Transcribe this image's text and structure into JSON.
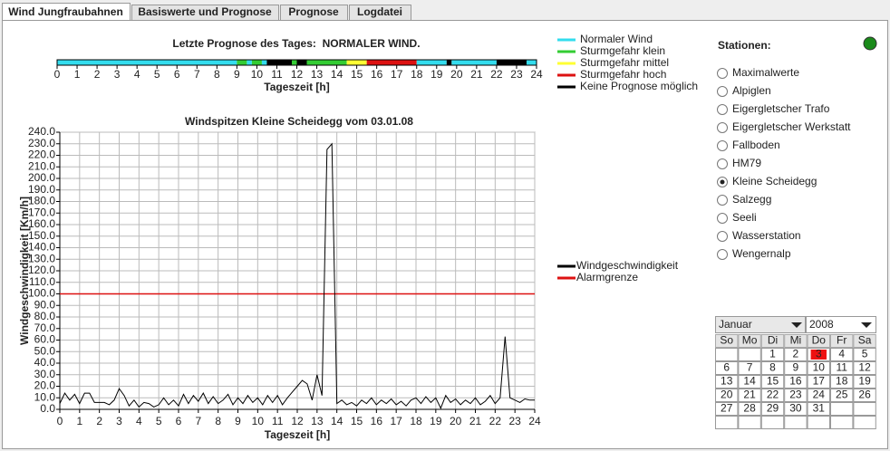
{
  "tabs": [
    "Wind Jungfraubahnen",
    "Basiswerte und Prognose",
    "Prognose",
    "Logdatei"
  ],
  "active_tab": 0,
  "forecast": {
    "title": "Letzte Prognose des Tages:  NORMALER WIND.",
    "x_label": "Tageszeit [h]",
    "xlim": [
      0,
      24
    ],
    "xticks": [
      0,
      1,
      2,
      3,
      4,
      5,
      6,
      7,
      8,
      9,
      10,
      11,
      12,
      13,
      14,
      15,
      16,
      17,
      18,
      19,
      20,
      21,
      22,
      23,
      24
    ],
    "segments": [
      {
        "start": 0,
        "end": 9,
        "color": "#33ddee"
      },
      {
        "start": 9,
        "end": 9.5,
        "color": "#33cc33"
      },
      {
        "start": 9.5,
        "end": 9.75,
        "color": "#33ddee"
      },
      {
        "start": 9.75,
        "end": 10.25,
        "color": "#33cc33"
      },
      {
        "start": 10.25,
        "end": 10.5,
        "color": "#33ddee"
      },
      {
        "start": 10.5,
        "end": 11.75,
        "color": "#000000"
      },
      {
        "start": 11.75,
        "end": 12,
        "color": "#33cc33"
      },
      {
        "start": 12,
        "end": 12.5,
        "color": "#000000"
      },
      {
        "start": 12.5,
        "end": 14.5,
        "color": "#33cc33"
      },
      {
        "start": 14.5,
        "end": 15.5,
        "color": "#ffff33"
      },
      {
        "start": 15.5,
        "end": 18,
        "color": "#dd1111"
      },
      {
        "start": 18,
        "end": 19.5,
        "color": "#33ddee"
      },
      {
        "start": 19.5,
        "end": 19.75,
        "color": "#000000"
      },
      {
        "start": 19.75,
        "end": 22,
        "color": "#33ddee"
      },
      {
        "start": 22,
        "end": 23.5,
        "color": "#000000"
      },
      {
        "start": 23.5,
        "end": 24,
        "color": "#33ddee"
      }
    ],
    "legend": [
      {
        "name": "Normaler Wind",
        "color": "#33ddee"
      },
      {
        "name": "Sturmgefahr klein",
        "color": "#33cc33"
      },
      {
        "name": "Sturmgefahr mittel",
        "color": "#ffff33"
      },
      {
        "name": "Sturmgefahr hoch",
        "color": "#dd1111"
      },
      {
        "name": "Keine Prognose möglich",
        "color": "#000000"
      }
    ]
  },
  "chart_data": {
    "type": "line",
    "title": "Windspitzen Kleine Scheidegg vom 03.01.08",
    "x_label": "Tageszeit [h]",
    "y_label": "Windgeschwindigkeit [Km/h]",
    "x": [
      0,
      0.25,
      0.5,
      0.75,
      1,
      1.25,
      1.5,
      1.75,
      2,
      2.25,
      2.5,
      2.75,
      3,
      3.25,
      3.5,
      3.75,
      4,
      4.25,
      4.5,
      4.75,
      5,
      5.25,
      5.5,
      5.75,
      6,
      6.25,
      6.5,
      6.75,
      7,
      7.25,
      7.5,
      7.75,
      8,
      8.25,
      8.5,
      8.75,
      9,
      9.25,
      9.5,
      9.75,
      10,
      10.25,
      10.5,
      10.75,
      11,
      11.25,
      11.5,
      11.75,
      12,
      12.25,
      12.5,
      12.75,
      13,
      13.25,
      13.5,
      13.75,
      14,
      14.25,
      14.5,
      14.75,
      15,
      15.25,
      15.5,
      15.75,
      16,
      16.25,
      16.5,
      16.75,
      17,
      17.25,
      17.5,
      17.75,
      18,
      18.25,
      18.5,
      18.75,
      19,
      19.25,
      19.5,
      19.75,
      20,
      20.25,
      20.5,
      20.75,
      21,
      21.25,
      21.5,
      21.75,
      22,
      22.25,
      22.5,
      22.75,
      23,
      23.25,
      23.5,
      23.75,
      24
    ],
    "xlim": [
      0,
      24
    ],
    "ylim": [
      0,
      240
    ],
    "xticks": [
      0,
      1,
      2,
      3,
      4,
      5,
      6,
      7,
      8,
      9,
      10,
      11,
      12,
      13,
      14,
      15,
      16,
      17,
      18,
      19,
      20,
      21,
      22,
      23,
      24
    ],
    "yticks": [
      {
        "value": 0,
        "label": "0.0"
      },
      {
        "value": 10,
        "label": "10.0"
      },
      {
        "value": 20,
        "label": "20.0"
      },
      {
        "value": 30,
        "label": "30.0"
      },
      {
        "value": 40,
        "label": "40.0"
      },
      {
        "value": 50,
        "label": "50.0"
      },
      {
        "value": 60,
        "label": "60.0"
      },
      {
        "value": 70,
        "label": "70.0"
      },
      {
        "value": 80,
        "label": "80.0"
      },
      {
        "value": 90,
        "label": "90.0"
      },
      {
        "value": 100,
        "label": "100.0"
      },
      {
        "value": 110,
        "label": "110.0"
      },
      {
        "value": 120,
        "label": "120.0"
      },
      {
        "value": 130,
        "label": "130.0"
      },
      {
        "value": 140,
        "label": "140.0"
      },
      {
        "value": 150,
        "label": "150.0"
      },
      {
        "value": 160,
        "label": "160.0"
      },
      {
        "value": 170,
        "label": "170.0"
      },
      {
        "value": 180,
        "label": "180.0"
      },
      {
        "value": 190,
        "label": "190.0"
      },
      {
        "value": 200,
        "label": "200.0"
      },
      {
        "value": 210,
        "label": "210.0"
      },
      {
        "value": 220,
        "label": "220.0"
      },
      {
        "value": 230,
        "label": "230.0"
      },
      {
        "value": 240,
        "label": "240.0"
      }
    ],
    "grid": true,
    "series": [
      {
        "name": "Windgeschwindigkeit",
        "color": "#000000",
        "values": [
          5,
          14,
          8,
          13,
          5,
          14,
          14,
          6,
          6,
          6,
          4,
          8,
          18,
          12,
          3,
          8,
          2,
          6,
          5,
          2,
          4,
          10,
          4,
          8,
          3,
          13,
          5,
          12,
          7,
          14,
          5,
          11,
          5,
          8,
          13,
          4,
          10,
          5,
          12,
          6,
          10,
          4,
          12,
          6,
          12,
          4,
          10,
          15,
          20,
          25,
          22,
          8,
          30,
          12,
          225,
          230,
          5,
          8,
          4,
          6,
          3,
          8,
          5,
          10,
          4,
          8,
          5,
          9,
          4,
          7,
          3,
          8,
          10,
          5,
          11,
          6,
          10,
          1,
          12,
          6,
          9,
          4,
          8,
          5,
          10,
          4,
          7,
          12,
          5,
          10,
          63,
          10,
          8,
          6,
          9,
          8,
          8
        ]
      }
    ],
    "reference_lines": [
      {
        "name": "Alarmgrenze",
        "color": "#dd1111",
        "value": 100
      }
    ]
  },
  "stations": {
    "title": "Stationen:",
    "status_color": "#1a8a1a",
    "items": [
      "Maximalwerte",
      "Alpiglen",
      "Eigergletscher Trafo",
      "Eigergletscher Werkstatt",
      "Fallboden",
      "HM79",
      "Kleine Scheidegg",
      "Salzegg",
      "Seeli",
      "Wasserstation",
      "Wengernalp"
    ],
    "selected": 6
  },
  "calendar": {
    "month": "Januar",
    "year": "2008",
    "weekdays": [
      "So",
      "Mo",
      "Di",
      "Mi",
      "Do",
      "Fr",
      "Sa"
    ],
    "weeks": [
      [
        null,
        null,
        1,
        2,
        3,
        4,
        5
      ],
      [
        6,
        7,
        8,
        9,
        10,
        11,
        12
      ],
      [
        13,
        14,
        15,
        16,
        17,
        18,
        19
      ],
      [
        20,
        21,
        22,
        23,
        24,
        25,
        26
      ],
      [
        27,
        28,
        29,
        30,
        31,
        null,
        null
      ],
      [
        null,
        null,
        null,
        null,
        null,
        null,
        null
      ]
    ],
    "selected_day": 3
  }
}
